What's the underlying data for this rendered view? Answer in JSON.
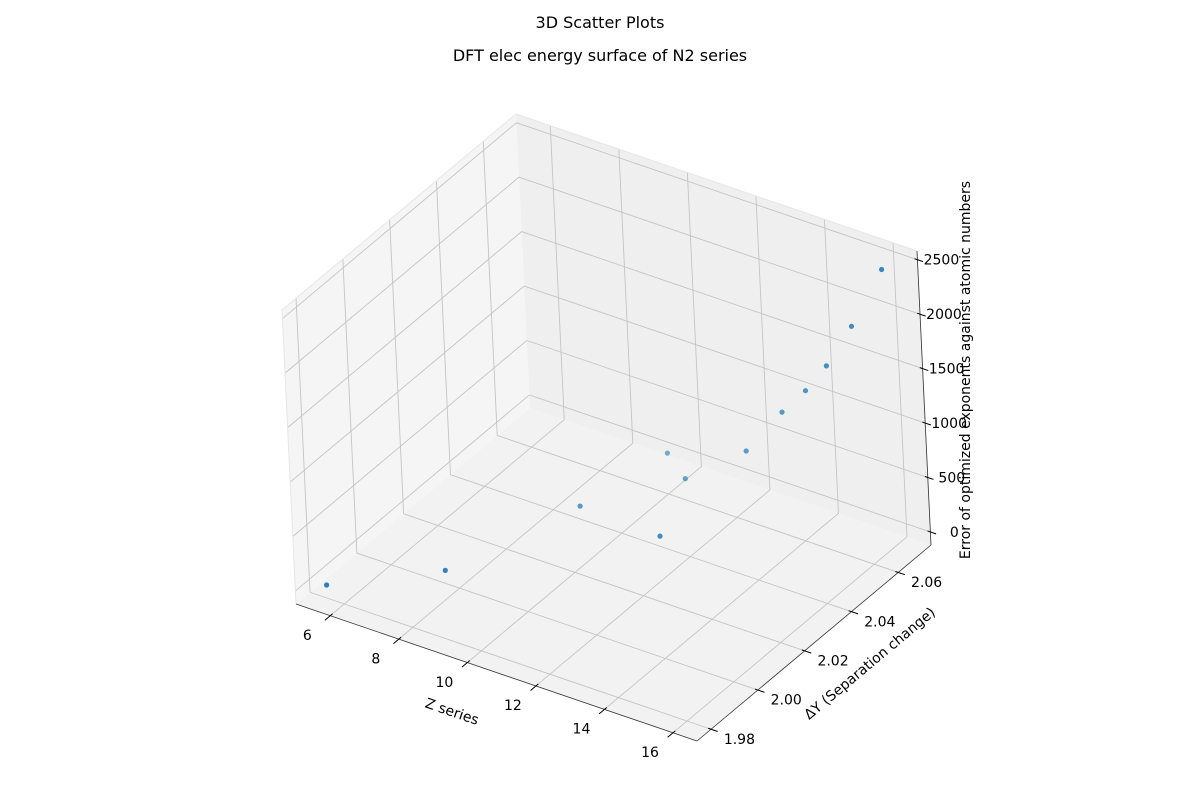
{
  "figure": {
    "suptitle": "3D Scatter Plots"
  },
  "chart_data": {
    "type": "scatter",
    "projection": "3d",
    "title": "DFT elec energy surface of N2 series",
    "xlabel": "Z series",
    "ylabel": "ΔY (Separation change)",
    "zlabel": "Error of optimized exponents against atomic numbers",
    "xlim": [
      5.0,
      16.7
    ],
    "ylim": [
      1.974,
      2.074
    ],
    "zlim": [
      -120,
      2580
    ],
    "xticks": [
      {
        "value": 6,
        "label": "6"
      },
      {
        "value": 8,
        "label": "8"
      },
      {
        "value": 10,
        "label": "10"
      },
      {
        "value": 12,
        "label": "12"
      },
      {
        "value": 14,
        "label": "14"
      },
      {
        "value": 16,
        "label": "16"
      }
    ],
    "yticks": [
      {
        "value": 1.98,
        "label": "1.98"
      },
      {
        "value": 2.0,
        "label": "2.00"
      },
      {
        "value": 2.02,
        "label": "2.02"
      },
      {
        "value": 2.04,
        "label": "2.04"
      },
      {
        "value": 2.06,
        "label": "2.06"
      }
    ],
    "zticks": [
      {
        "value": 0,
        "label": "0"
      },
      {
        "value": 500,
        "label": "500"
      },
      {
        "value": 1000,
        "label": "1000"
      },
      {
        "value": 1500,
        "label": "1500"
      },
      {
        "value": 2000,
        "label": "2000"
      },
      {
        "value": 2500,
        "label": "2500"
      }
    ],
    "grid": true,
    "color": "#1f77b4",
    "points": [
      {
        "x": 5.5,
        "y": 1.98,
        "z": 0
      },
      {
        "x": 7.6,
        "y": 2.0,
        "z": 0
      },
      {
        "x": 8.8,
        "y": 2.04,
        "z": 0
      },
      {
        "x": 9.3,
        "y": 2.07,
        "z": 0
      },
      {
        "x": 10.3,
        "y": 2.063,
        "z": 0
      },
      {
        "x": 11.2,
        "y": 2.039,
        "z": 0
      },
      {
        "x": 12.0,
        "y": 2.065,
        "z": 400
      },
      {
        "x": 12.9,
        "y": 2.068,
        "z": 800
      },
      {
        "x": 13.7,
        "y": 2.067,
        "z": 1100
      },
      {
        "x": 14.5,
        "y": 2.065,
        "z": 1450
      },
      {
        "x": 15.3,
        "y": 2.065,
        "z": 1900
      },
      {
        "x": 16.2,
        "y": 2.066,
        "z": 2500
      }
    ]
  }
}
